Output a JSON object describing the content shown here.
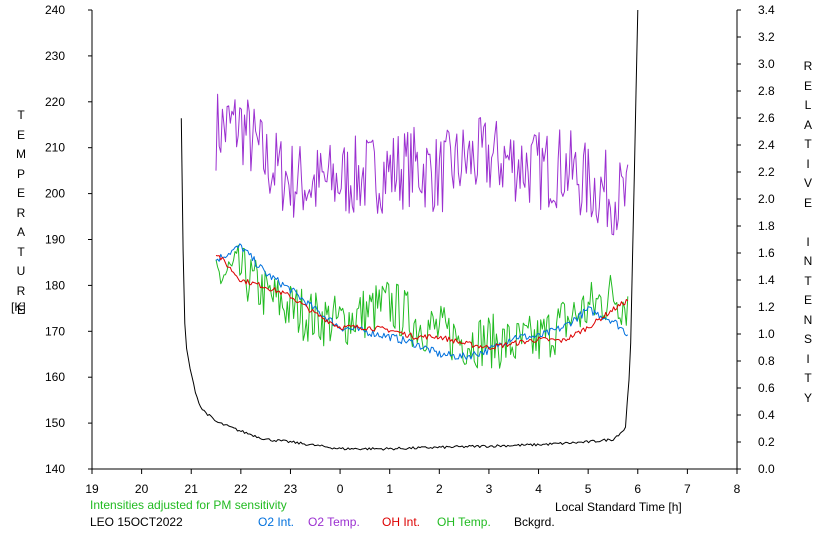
{
  "chart_data": {
    "type": "line",
    "y_left_label": "TEMPERATURE",
    "y_left_unit": "[K]",
    "y_right_label": "RELATIVE INTENSITY",
    "x_label": "Local Standard Time [h]",
    "x_ticks": [
      "19",
      "20",
      "21",
      "22",
      "23",
      "0",
      "1",
      "2",
      "3",
      "4",
      "5",
      "6",
      "7",
      "8"
    ],
    "x_range": [
      19,
      32
    ],
    "y_left_ticks": [
      140,
      150,
      160,
      170,
      180,
      190,
      200,
      210,
      220,
      230,
      240
    ],
    "y_left_range": [
      140,
      240
    ],
    "y_right_ticks": [
      "0.0",
      "0.2",
      "0.4",
      "0.6",
      "0.8",
      "1.0",
      "1.2",
      "1.4",
      "1.6",
      "1.8",
      "2.0",
      "2.2",
      "2.4",
      "2.6",
      "2.8",
      "3.0",
      "3.2",
      "3.4"
    ],
    "y_right_range": [
      0,
      3.4
    ],
    "note": "Intensities adjusted for PM sensitivity",
    "station": "LEO 15OCT2022",
    "series": [
      {
        "name": "O2 Int.",
        "color": "#0070dd",
        "axis": "right",
        "x": [
          21.5,
          22.0,
          22.5,
          23.0,
          23.5,
          24.0,
          24.5,
          25.0,
          25.5,
          26.0,
          26.5,
          27.0,
          27.5,
          28.0,
          28.5,
          29.0,
          29.5,
          29.8
        ],
        "y": [
          1.55,
          1.65,
          1.45,
          1.33,
          1.18,
          1.05,
          1.02,
          0.98,
          0.93,
          0.85,
          0.83,
          0.88,
          0.98,
          0.98,
          1.05,
          1.18,
          1.1,
          1.0
        ]
      },
      {
        "name": "O2 Temp.",
        "color": "#9b30d0",
        "axis": "left",
        "x": [
          21.5,
          22.0,
          22.5,
          23.0,
          23.5,
          24.0,
          24.5,
          25.0,
          25.5,
          26.0,
          26.5,
          27.0,
          27.5,
          28.0,
          28.5,
          29.0,
          29.5,
          29.8
        ],
        "y": [
          214,
          215,
          207,
          203,
          202,
          203,
          204,
          205,
          206,
          204,
          207,
          208,
          207,
          205,
          206,
          202,
          200,
          198
        ]
      },
      {
        "name": "OH Int.",
        "color": "#dd0000",
        "axis": "right",
        "x": [
          21.5,
          22.0,
          22.5,
          23.0,
          23.5,
          24.0,
          24.5,
          25.0,
          25.5,
          26.0,
          26.5,
          27.0,
          27.5,
          28.0,
          28.5,
          29.0,
          29.5,
          29.8
        ],
        "y": [
          1.6,
          1.4,
          1.35,
          1.28,
          1.15,
          1.05,
          1.05,
          1.03,
          0.98,
          0.98,
          0.93,
          0.9,
          0.93,
          0.96,
          0.95,
          1.05,
          1.18,
          1.25
        ]
      },
      {
        "name": "OH Temp.",
        "color": "#22bb22",
        "axis": "left",
        "x": [
          21.5,
          22.0,
          22.5,
          23.0,
          23.5,
          24.0,
          24.5,
          25.0,
          25.5,
          26.0,
          26.5,
          27.0,
          27.5,
          28.0,
          28.5,
          29.0,
          29.5,
          29.8
        ],
        "y": [
          182,
          183,
          178,
          175,
          173,
          172,
          174,
          176,
          172,
          170,
          168,
          168,
          167,
          168,
          172,
          175,
          178,
          176
        ]
      },
      {
        "name": "Bckgrd.",
        "color": "#000000",
        "axis": "right",
        "x": [
          20.8,
          20.85,
          20.9,
          21.0,
          21.1,
          21.2,
          21.5,
          22.0,
          22.5,
          23.0,
          24.0,
          25.0,
          26.0,
          27.0,
          28.0,
          29.0,
          29.5,
          29.75,
          29.85,
          29.92,
          30.0
        ],
        "y": [
          2.6,
          1.2,
          0.9,
          0.7,
          0.55,
          0.45,
          0.35,
          0.28,
          0.22,
          0.2,
          0.15,
          0.15,
          0.16,
          0.17,
          0.18,
          0.2,
          0.22,
          0.3,
          0.8,
          2.0,
          3.4
        ]
      }
    ]
  }
}
